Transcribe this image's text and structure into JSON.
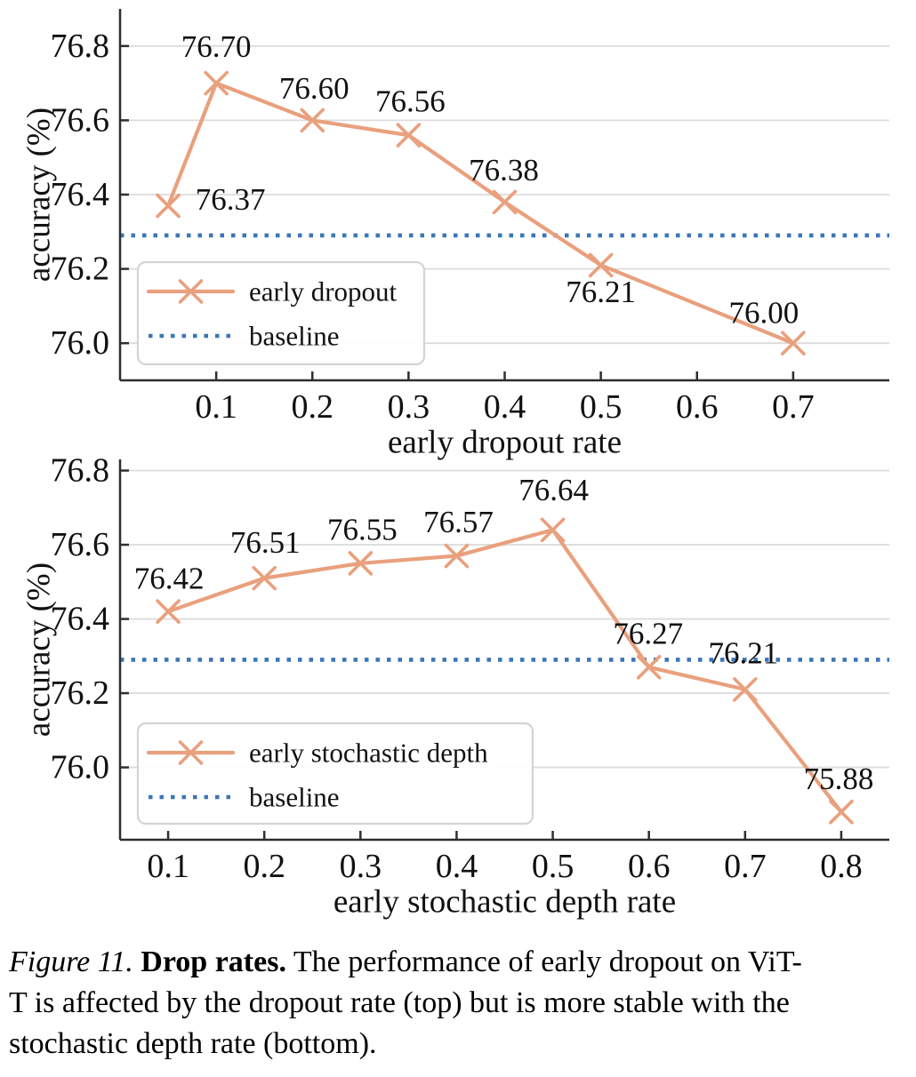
{
  "colors": {
    "series": "#e9a07d",
    "baseline": "#3a76b8",
    "grid": "#dcdcdc",
    "spine": "#2e2e2e",
    "text": "#111111",
    "legend_border": "#d4d4d4",
    "legend_fill": "#ffffff"
  },
  "chart_data": [
    {
      "type": "line",
      "name": "early-dropout-chart",
      "title": "",
      "xlabel": "early dropout rate",
      "ylabel": "accuracy (%)",
      "xlim": [
        0.0,
        0.8
      ],
      "ylim": [
        75.9,
        76.9
      ],
      "xticks": [
        0.1,
        0.2,
        0.3,
        0.4,
        0.5,
        0.6,
        0.7
      ],
      "yticks": [
        76.0,
        76.2,
        76.4,
        76.6,
        76.8
      ],
      "grid": "horizontal-only",
      "legend_position": "lower-left",
      "series": [
        {
          "name": "early dropout",
          "type": "line",
          "marker": "x",
          "x": [
            0.05,
            0.1,
            0.2,
            0.3,
            0.4,
            0.5,
            0.7
          ],
          "y": [
            76.37,
            76.7,
            76.6,
            76.56,
            76.38,
            76.21,
            76.0
          ],
          "point_labels": [
            "76.37",
            "76.70",
            "76.60",
            "76.56",
            "76.38",
            "76.21",
            "76.00"
          ],
          "label_offsets": [
            [
              70,
              -7
            ],
            [
              0,
              -41
            ],
            [
              2,
              -36
            ],
            [
              2,
              -38
            ],
            [
              -1,
              -36
            ],
            [
              0,
              30
            ],
            [
              -33,
              -34
            ]
          ]
        },
        {
          "name": "baseline",
          "type": "hline",
          "style": "dotted",
          "y": 76.29
        }
      ]
    },
    {
      "type": "line",
      "name": "early-stochastic-depth-chart",
      "title": "",
      "xlabel": "early stochastic depth rate",
      "ylabel": "accuracy (%)",
      "xlim": [
        0.05,
        0.85
      ],
      "ylim": [
        75.805,
        76.83
      ],
      "xticks": [
        0.1,
        0.2,
        0.3,
        0.4,
        0.5,
        0.6,
        0.7,
        0.8
      ],
      "yticks": [
        76.0,
        76.2,
        76.4,
        76.6,
        76.8
      ],
      "grid": "horizontal-only",
      "legend_position": "lower-left",
      "series": [
        {
          "name": "early stochastic depth",
          "type": "line",
          "marker": "x",
          "x": [
            0.1,
            0.2,
            0.3,
            0.4,
            0.5,
            0.6,
            0.7,
            0.8
          ],
          "y": [
            76.42,
            76.51,
            76.55,
            76.57,
            76.64,
            76.27,
            76.21,
            75.88
          ],
          "point_labels": [
            "76.42",
            "76.51",
            "76.55",
            "76.57",
            "76.64",
            "76.27",
            "76.21",
            "75.88"
          ],
          "label_offsets": [
            [
              1,
              -37
            ],
            [
              1,
              -40
            ],
            [
              2,
              -38
            ],
            [
              2,
              -38
            ],
            [
              1,
              -45
            ],
            [
              -1,
              -38
            ],
            [
              -2,
              -41
            ],
            [
              -3,
              -37
            ]
          ]
        },
        {
          "name": "baseline",
          "type": "hline",
          "style": "dotted",
          "y": 76.29
        }
      ]
    }
  ],
  "caption": {
    "line1_prefix": "Figure 11.",
    "line1_title": " Drop rates.",
    "line1_rest": " The performance of early dropout on ViT-",
    "line2": "T is affected by the dropout rate (top) but is more stable with the",
    "line3": "stochastic depth rate (bottom)."
  }
}
